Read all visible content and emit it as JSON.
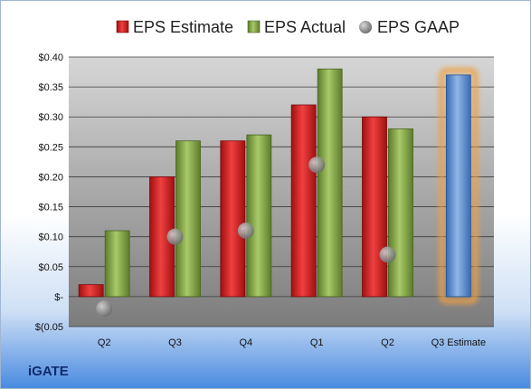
{
  "company": "iGATE",
  "chart_data": {
    "type": "bar",
    "categories": [
      "Q2",
      "Q3",
      "Q4",
      "Q1",
      "Q2",
      "Q3 Estimate"
    ],
    "series": [
      {
        "name": "EPS Estimate",
        "values": [
          0.02,
          0.2,
          0.26,
          0.32,
          0.3,
          null
        ]
      },
      {
        "name": "EPS Actual",
        "values": [
          0.11,
          0.26,
          0.27,
          0.38,
          0.28,
          0.37
        ]
      },
      {
        "name": "EPS GAAP",
        "values": [
          -0.02,
          0.1,
          0.11,
          0.22,
          0.07,
          null
        ]
      }
    ],
    "highlight_category": "Q3 Estimate",
    "ylim": [
      -0.05,
      0.4
    ],
    "yticks": [
      -0.05,
      0.0,
      0.05,
      0.1,
      0.15,
      0.2,
      0.25,
      0.3,
      0.35,
      0.4
    ],
    "ytick_labels": [
      "$(0.05",
      "$-",
      "$0.05",
      "$0.10",
      "$0.15",
      "$0.20",
      "$0.25",
      "$0.30",
      "$0.35",
      "$0.40"
    ],
    "grid": true,
    "legend_position": "top",
    "colors": {
      "estimate": "#d42020",
      "actual": "#8aae4a",
      "gaap": "#9a9a9a",
      "projected": "#5b8fd0",
      "highlight": "#f0a040",
      "plot_top": "#d4d4d4",
      "plot_bottom": "#7a7a7a"
    }
  }
}
